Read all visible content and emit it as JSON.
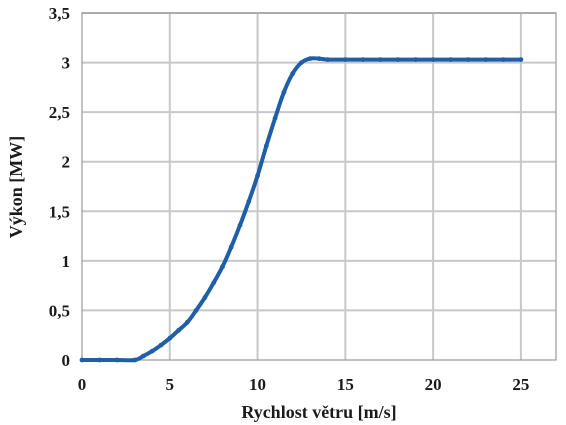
{
  "chart_data": {
    "type": "line",
    "xlabel": "Rychlost větru [m/s]",
    "ylabel": "Výkon [MW]",
    "xlim": [
      0,
      27
    ],
    "ylim": [
      0,
      3.5
    ],
    "x_ticks": [
      {
        "value": 0,
        "label": "0"
      },
      {
        "value": 5,
        "label": "5"
      },
      {
        "value": 10,
        "label": "10"
      },
      {
        "value": 15,
        "label": "15"
      },
      {
        "value": 20,
        "label": "20"
      },
      {
        "value": 25,
        "label": "25"
      }
    ],
    "y_ticks": [
      {
        "value": 0,
        "label": "0"
      },
      {
        "value": 0.5,
        "label": "0,5"
      },
      {
        "value": 1,
        "label": "1"
      },
      {
        "value": 1.5,
        "label": "1,5"
      },
      {
        "value": 2,
        "label": "2"
      },
      {
        "value": 2.5,
        "label": "2,5"
      },
      {
        "value": 3,
        "label": "3"
      },
      {
        "value": 3.5,
        "label": "3,5"
      }
    ],
    "grid": true,
    "legend": "none",
    "line_color": "#1f5fa8",
    "series": [
      {
        "x": [
          0,
          1,
          2,
          3,
          3.5,
          4,
          4.5,
          5,
          5.5,
          6,
          6.5,
          7,
          7.5,
          8,
          8.5,
          9,
          9.5,
          10,
          10.5,
          11,
          11.5,
          12,
          12.5,
          13,
          13.5,
          14,
          15,
          16,
          17,
          18,
          19,
          20,
          21,
          22,
          23,
          24,
          25
        ],
        "y": [
          0,
          0,
          0,
          0,
          0.04,
          0.09,
          0.15,
          0.22,
          0.3,
          0.38,
          0.5,
          0.63,
          0.78,
          0.94,
          1.14,
          1.36,
          1.6,
          1.86,
          2.16,
          2.44,
          2.7,
          2.89,
          3.0,
          3.04,
          3.04,
          3.03,
          3.03,
          3.03,
          3.03,
          3.03,
          3.03,
          3.03,
          3.03,
          3.03,
          3.03,
          3.03,
          3.03
        ]
      }
    ]
  }
}
